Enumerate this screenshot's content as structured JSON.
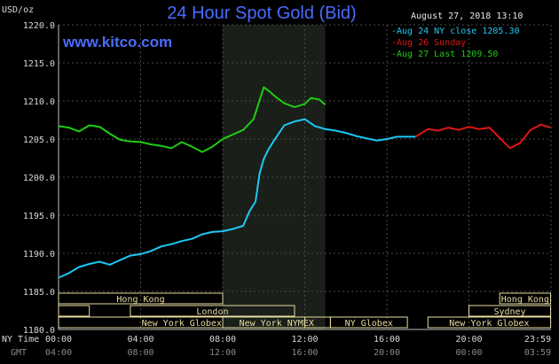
{
  "header": {
    "title": "24 Hour Spot Gold (Bid)",
    "y_unit": "USD/oz",
    "timestamp": "August 27, 2018 13:10",
    "site": "www.kitco.com"
  },
  "axis_labels": {
    "ny_time": "NY Time",
    "gmt": "GMT"
  },
  "colors": {
    "aug24": "#1ec8f5",
    "aug26": "#e01515",
    "aug27": "#1ecd12",
    "title": "#4a6cff",
    "grid": "#4a4a4a",
    "session_box": "#e8dca0",
    "highlight": "#1a1f1a"
  },
  "chart_data": {
    "type": "line",
    "title": "24 Hour Spot Gold (Bid)",
    "ylabel": "USD/oz",
    "ylim": [
      1180.0,
      1220.0
    ],
    "yticks": [
      "1180.0",
      "1185.0",
      "1190.0",
      "1195.0",
      "1200.0",
      "1205.0",
      "1210.0",
      "1215.0",
      "1220.0"
    ],
    "xlim": [
      0,
      24
    ],
    "xticks_ny": [
      "00:00",
      "04:00",
      "08:00",
      "12:00",
      "16:00",
      "20:00",
      "23:59"
    ],
    "xticks_gmt": [
      "04:00",
      "08:00",
      "12:00",
      "16:00",
      "20:00",
      "00:00",
      "03:59"
    ],
    "highlight_hours": [
      8,
      13
    ],
    "legend_position": "top-right",
    "series": [
      {
        "name": "Aug 24 NY close 1205.30",
        "color": "aug24",
        "x": [
          0,
          0.5,
          1,
          1.5,
          2,
          2.5,
          3,
          3.5,
          4,
          4.5,
          5,
          5.5,
          6,
          6.5,
          7,
          7.5,
          8,
          8.5,
          9,
          9.3,
          9.6,
          9.8,
          10,
          10.2,
          10.5,
          11,
          11.5,
          12,
          12.5,
          13,
          13.5,
          14,
          14.5,
          15,
          15.5,
          16,
          16.5,
          17,
          17.4
        ],
        "y": [
          1186.8,
          1187.4,
          1188.2,
          1188.6,
          1188.9,
          1188.5,
          1189.1,
          1189.7,
          1189.9,
          1190.3,
          1190.9,
          1191.2,
          1191.6,
          1191.9,
          1192.5,
          1192.8,
          1192.9,
          1193.2,
          1193.6,
          1195.5,
          1196.8,
          1200.5,
          1202.4,
          1203.5,
          1204.8,
          1206.8,
          1207.3,
          1207.6,
          1206.7,
          1206.3,
          1206.1,
          1205.8,
          1205.4,
          1205.1,
          1204.8,
          1205.0,
          1205.3,
          1205.3,
          1205.3
        ]
      },
      {
        "name": "Aug 26 Sunday",
        "color": "aug26",
        "x": [
          17.4,
          18,
          18.5,
          19,
          19.5,
          20,
          20.5,
          21,
          21.3,
          21.7,
          22,
          22.5,
          23,
          23.5,
          23.98
        ],
        "y": [
          1205.3,
          1206.3,
          1206.1,
          1206.5,
          1206.2,
          1206.6,
          1206.3,
          1206.5,
          1205.7,
          1204.6,
          1203.8,
          1204.5,
          1206.2,
          1206.9,
          1206.5
        ]
      },
      {
        "name": "Aug 27 Last 1209.50",
        "color": "aug27",
        "x": [
          0,
          0.5,
          1,
          1.5,
          2,
          2.5,
          3,
          3.5,
          4,
          4.5,
          5,
          5.5,
          6,
          6.5,
          7,
          7.5,
          8,
          8.5,
          9,
          9.5,
          10,
          10.3,
          10.6,
          11,
          11.5,
          12,
          12.3,
          12.7,
          13
        ],
        "y": [
          1206.7,
          1206.5,
          1206.0,
          1206.8,
          1206.6,
          1205.7,
          1204.9,
          1204.7,
          1204.6,
          1204.3,
          1204.1,
          1203.8,
          1204.6,
          1204.0,
          1203.3,
          1204.0,
          1205.0,
          1205.6,
          1206.2,
          1207.6,
          1211.8,
          1211.2,
          1210.5,
          1209.7,
          1209.2,
          1209.6,
          1210.4,
          1210.2,
          1209.5
        ]
      }
    ]
  },
  "sessions": [
    {
      "label": "Hong Kong",
      "start": 0,
      "end": 8.0,
      "row": 0
    },
    {
      "label": "Hong Kong",
      "start": 21.5,
      "end": 23.98,
      "row": 0
    },
    {
      "label": "",
      "start": 0,
      "end": 1.5,
      "row": 1
    },
    {
      "label": "London",
      "start": 3.5,
      "end": 11.5,
      "row": 1
    },
    {
      "label": "Sydney",
      "start": 20.0,
      "end": 23.98,
      "row": 1
    },
    {
      "label": "New York Globex",
      "start": 0,
      "end": 12.0,
      "row": 2
    },
    {
      "label": "New York NYMEX",
      "start": 8.0,
      "end": 13.25,
      "row": 2
    },
    {
      "label": "NY Globex",
      "start": 13.25,
      "end": 17.0,
      "row": 2
    },
    {
      "label": "New York Globex",
      "start": 18.0,
      "end": 23.98,
      "row": 2
    }
  ]
}
